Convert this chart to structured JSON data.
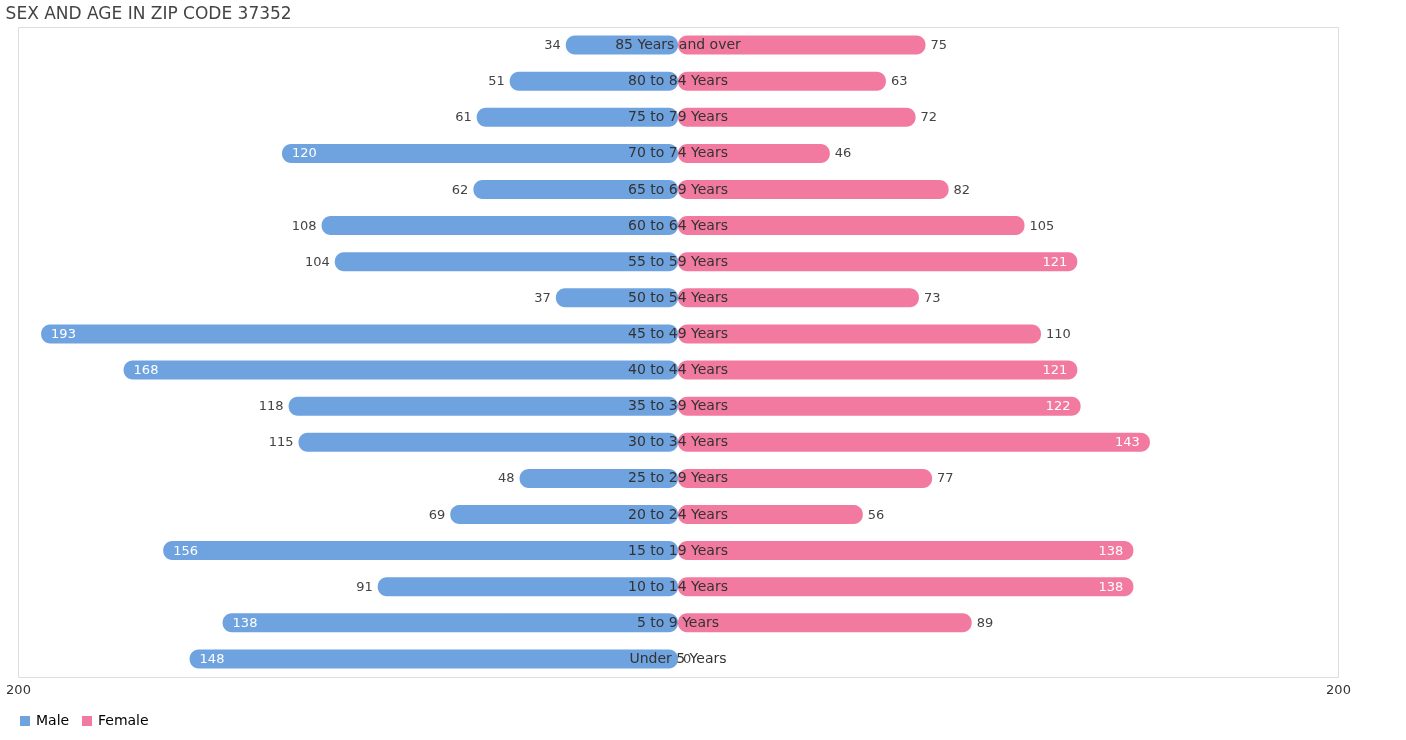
{
  "chart_data": {
    "type": "bar",
    "orientation": "horizontal",
    "title": "SEX AND AGE IN ZIP CODE 37352",
    "categories": [
      "85 Years and over",
      "80 to 84 Years",
      "75 to 79 Years",
      "70 to 74 Years",
      "65 to 69 Years",
      "60 to 64 Years",
      "55 to 59 Years",
      "50 to 54 Years",
      "45 to 49 Years",
      "40 to 44 Years",
      "35 to 39 Years",
      "30 to 34 Years",
      "25 to 29 Years",
      "20 to 24 Years",
      "15 to 19 Years",
      "10 to 14 Years",
      "5 to 9 Years",
      "Under 5 Years"
    ],
    "series": [
      {
        "name": "Male",
        "color": "#6fa3e0",
        "values": [
          34,
          51,
          61,
          120,
          62,
          108,
          104,
          37,
          193,
          168,
          118,
          115,
          48,
          69,
          156,
          91,
          138,
          148
        ],
        "base": [
          -34,
          -51,
          -61,
          -120,
          -62,
          -108,
          -104,
          -37,
          -193,
          -168,
          -118,
          -115,
          -48,
          -69,
          -156,
          -91,
          -138,
          -148
        ]
      },
      {
        "name": "Female",
        "color": "#f27aa0",
        "values": [
          75,
          63,
          72,
          46,
          82,
          105,
          121,
          73,
          110,
          121,
          122,
          143,
          77,
          56,
          138,
          138,
          89,
          0
        ]
      }
    ],
    "data_labels": true,
    "xlim": [
      -200,
      200
    ],
    "xticks": [
      {
        "value": -200,
        "label": "200"
      },
      {
        "value": 200,
        "label": "200"
      }
    ],
    "legend": "bottom"
  }
}
